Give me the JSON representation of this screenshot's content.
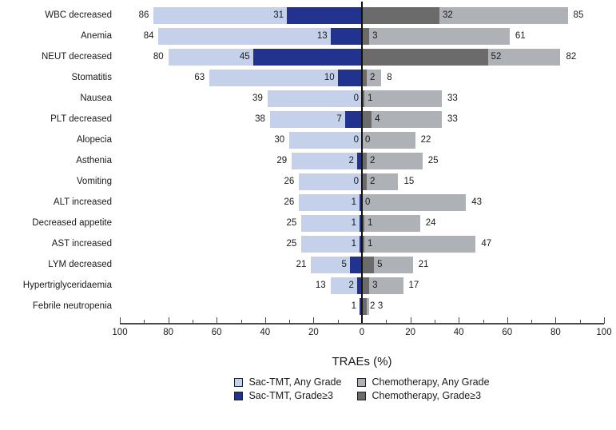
{
  "chart_data": {
    "type": "bar",
    "variant": "diverging-tornado-horizontal",
    "title": "",
    "xlabel": "TRAEs (%)",
    "axis_tick_labels": [
      "100",
      "80",
      "60",
      "40",
      "20",
      "0",
      "20",
      "40",
      "60",
      "80",
      "100"
    ],
    "axis_range_per_side": 100,
    "minor_tick_step": 10,
    "categories": [
      "WBC decreased",
      "Anemia",
      "NEUT decreased",
      "Stomatitis",
      "Nausea",
      "PLT decreased",
      "Alopecia",
      "Asthenia",
      "Vomiting",
      "ALT increased",
      "Decreased appetite",
      "AST increased",
      "LYM decreased",
      "Hypertriglyceridaemia",
      "Febrile neutropenia"
    ],
    "series": [
      {
        "key": "sac_any",
        "name": "Sac-TMT, Any Grade",
        "side": "left",
        "color": "#c5d0ea",
        "values": [
          86,
          84,
          80,
          63,
          39,
          38,
          30,
          29,
          26,
          26,
          25,
          25,
          21,
          13,
          1
        ]
      },
      {
        "key": "sac_g3",
        "name": "Sac-TMT, Grade≥3",
        "side": "left",
        "color": "#22328f",
        "values": [
          31,
          13,
          45,
          10,
          0,
          7,
          0,
          2,
          0,
          1,
          1,
          1,
          5,
          2,
          1
        ]
      },
      {
        "key": "chemo_any",
        "name": "Chemotherapy, Any Grade",
        "side": "right",
        "color": "#aeb1b5",
        "values": [
          85,
          61,
          82,
          8,
          33,
          33,
          22,
          25,
          15,
          43,
          24,
          47,
          21,
          17,
          3
        ]
      },
      {
        "key": "chemo_g3",
        "name": "Chemotherapy, Grade≥3",
        "side": "right",
        "color": "#6b6b6b",
        "values": [
          32,
          3,
          52,
          2,
          1,
          4,
          0,
          2,
          2,
          0,
          1,
          1,
          5,
          3,
          2
        ]
      }
    ],
    "legend": {
      "position": "bottom",
      "items": [
        {
          "label": "Sac-TMT, Any Grade",
          "color": "#c5d0ea"
        },
        {
          "label": "Chemotherapy, Any Grade",
          "color": "#aeb1b5"
        },
        {
          "label": "Sac-TMT, Grade≥3",
          "color": "#22328f"
        },
        {
          "label": "Chemotherapy, Grade≥3",
          "color": "#6b6b6b"
        }
      ]
    },
    "colors": {
      "axis": "#4a4a4a",
      "center_line": "#111111",
      "text": "#1a1a1a",
      "background": "#ffffff"
    }
  }
}
